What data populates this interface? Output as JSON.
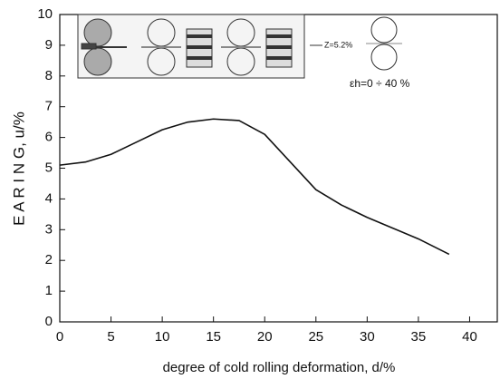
{
  "chart_data": {
    "type": "line",
    "x_label": "degree of cold rolling deformation,  d/%",
    "y_label": "E A R I N G, u/%",
    "annotations": [
      "Z=5.2%",
      "εh=0 ÷ 40 %"
    ],
    "x": [
      0,
      2.5,
      5,
      7.5,
      10,
      12.5,
      15,
      17.5,
      20,
      22.5,
      25,
      27.5,
      30,
      32.5,
      35,
      38
    ],
    "series": [
      {
        "color": "#111111",
        "values": [
          5.1,
          5.2,
          5.45,
          5.85,
          6.25,
          6.5,
          6.6,
          6.55,
          6.1,
          5.2,
          4.3,
          3.8,
          3.4,
          3.05,
          2.7,
          2.2
        ]
      }
    ],
    "xlim": [
      0,
      42.7
    ],
    "xticks": [
      0,
      5,
      10,
      15,
      20,
      25,
      30,
      35,
      40
    ],
    "ylim": [
      0,
      10
    ],
    "yticks": [
      0,
      1,
      2,
      3,
      4,
      5,
      6,
      7,
      8,
      9,
      10
    ]
  }
}
